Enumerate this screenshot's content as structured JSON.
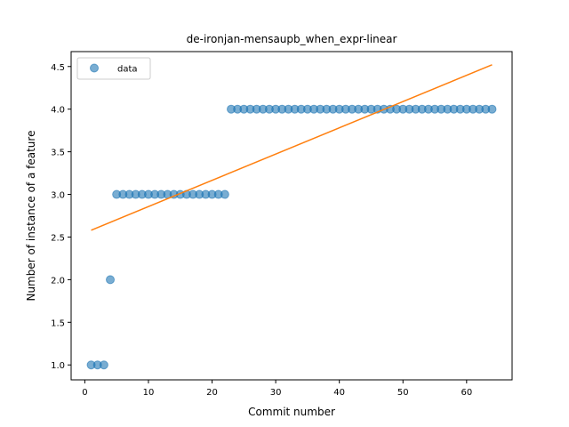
{
  "chart_data": {
    "type": "scatter",
    "title": "de-ironjan-mensaupb_when_expr-linear",
    "xlabel": "Commit number",
    "ylabel": "Number of instance of a feature",
    "xlim": [
      -2.15,
      67.15
    ],
    "ylim": [
      0.825,
      4.675
    ],
    "xticks": [
      0,
      10,
      20,
      30,
      40,
      50,
      60
    ],
    "yticks": [
      1.0,
      1.5,
      2.0,
      2.5,
      3.0,
      3.5,
      4.0,
      4.5
    ],
    "grid": false,
    "legend_position": "top-left",
    "series": [
      {
        "name": "data",
        "kind": "scatter",
        "color": "#1f77b4",
        "x": [
          1,
          2,
          3,
          4,
          5,
          6,
          7,
          8,
          9,
          10,
          11,
          12,
          13,
          14,
          15,
          16,
          17,
          18,
          19,
          20,
          21,
          22,
          23,
          24,
          25,
          26,
          27,
          28,
          29,
          30,
          31,
          32,
          33,
          34,
          35,
          36,
          37,
          38,
          39,
          40,
          41,
          42,
          43,
          44,
          45,
          46,
          47,
          48,
          49,
          50,
          51,
          52,
          53,
          54,
          55,
          56,
          57,
          58,
          59,
          60,
          61,
          62,
          63,
          64
        ],
        "y": [
          1,
          1,
          1,
          2,
          3,
          3,
          3,
          3,
          3,
          3,
          3,
          3,
          3,
          3,
          3,
          3,
          3,
          3,
          3,
          3,
          3,
          3,
          4,
          4,
          4,
          4,
          4,
          4,
          4,
          4,
          4,
          4,
          4,
          4,
          4,
          4,
          4,
          4,
          4,
          4,
          4,
          4,
          4,
          4,
          4,
          4,
          4,
          4,
          4,
          4,
          4,
          4,
          4,
          4,
          4,
          4,
          4,
          4,
          4,
          4,
          4,
          4,
          4,
          4
        ]
      },
      {
        "kind": "line",
        "color": "#ff7f0e",
        "x": [
          1,
          64
        ],
        "y": [
          2.58,
          4.52
        ]
      }
    ]
  }
}
